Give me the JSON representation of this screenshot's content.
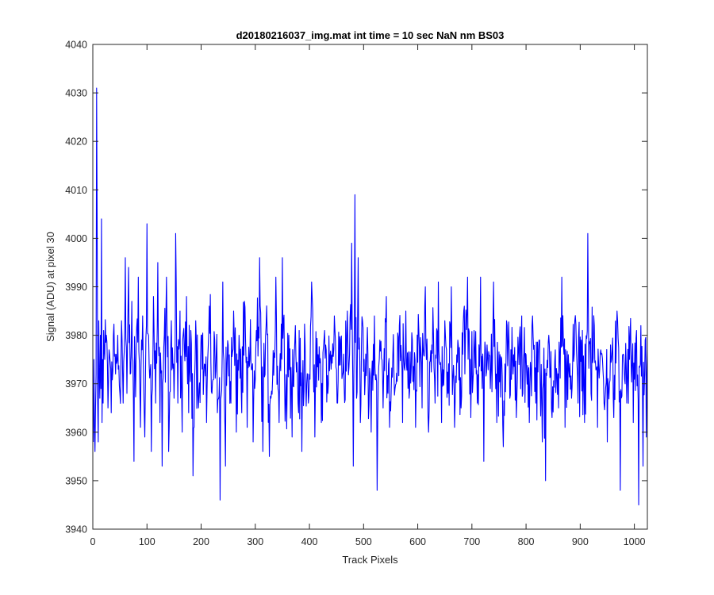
{
  "chart_data": {
    "type": "line",
    "title": "d20180216037_img.mat int time = 10 sec  NaN nm BS03",
    "xlabel": "Track Pixels",
    "ylabel": "Signal (ADU) at pixel 30",
    "xlim": [
      0,
      1024
    ],
    "ylim": [
      3940,
      4040
    ],
    "xticks": [
      0,
      100,
      200,
      300,
      400,
      500,
      600,
      700,
      800,
      900,
      1000
    ],
    "yticks": [
      3940,
      3950,
      3960,
      3970,
      3980,
      3990,
      4000,
      4010,
      4020,
      4030,
      4040
    ],
    "grid": false,
    "legend": "none",
    "series": [
      {
        "color": "#0000ff",
        "mean": 3975,
        "points": [
          [
            1,
            3958
          ],
          [
            2,
            3975
          ],
          [
            3,
            3961
          ],
          [
            4,
            3956
          ],
          [
            5,
            3965
          ],
          [
            6,
            3972
          ],
          [
            7,
            4031
          ],
          [
            8,
            4003
          ],
          [
            9,
            3966
          ],
          [
            10,
            3958
          ],
          [
            11,
            3983
          ],
          [
            12,
            3972
          ],
          [
            13,
            3967
          ],
          [
            14,
            3980
          ],
          [
            15,
            3969
          ],
          [
            16,
            4004
          ],
          [
            17,
            3962
          ],
          [
            18,
            3975
          ],
          [
            19,
            3966
          ],
          [
            20,
            3981
          ],
          [
            22,
            3975
          ],
          [
            25,
            3980
          ],
          [
            28,
            3965
          ],
          [
            31,
            3976
          ],
          [
            34,
            3964
          ],
          [
            38,
            3980
          ],
          [
            42,
            3972
          ],
          [
            46,
            3980
          ],
          [
            50,
            3968
          ],
          [
            53,
            3983
          ],
          [
            56,
            3966
          ],
          [
            60,
            3996
          ],
          [
            63,
            3968
          ],
          [
            66,
            3994
          ],
          [
            69,
            3972
          ],
          [
            72,
            3987
          ],
          [
            76,
            3954
          ],
          [
            80,
            3977
          ],
          [
            84,
            3992
          ],
          [
            88,
            3961
          ],
          [
            92,
            3984
          ],
          [
            96,
            3959
          ],
          [
            100,
            4003
          ],
          [
            104,
            3974
          ],
          [
            108,
            3956
          ],
          [
            112,
            3988
          ],
          [
            116,
            3966
          ],
          [
            120,
            3995
          ],
          [
            124,
            3962
          ],
          [
            128,
            3953
          ],
          [
            132,
            3980
          ],
          [
            136,
            3992
          ],
          [
            140,
            3956
          ],
          [
            145,
            3983
          ],
          [
            150,
            3967
          ],
          [
            153,
            4001
          ],
          [
            157,
            3966
          ],
          [
            161,
            3985
          ],
          [
            165,
            3960
          ],
          [
            169,
            3977
          ],
          [
            173,
            3988
          ],
          [
            177,
            3964
          ],
          [
            181,
            3981
          ],
          [
            185,
            3951
          ],
          [
            190,
            3983
          ],
          [
            195,
            3965
          ],
          [
            200,
            3980
          ],
          [
            205,
            3972
          ],
          [
            210,
            3962
          ],
          [
            215,
            3986
          ],
          [
            220,
            3968
          ],
          [
            225,
            3979
          ],
          [
            230,
            3964
          ],
          [
            235,
            3946
          ],
          [
            240,
            3991
          ],
          [
            245,
            3953
          ],
          [
            250,
            3978
          ],
          [
            255,
            3966
          ],
          [
            260,
            3985
          ],
          [
            265,
            3960
          ],
          [
            270,
            3980
          ],
          [
            275,
            3964
          ],
          [
            280,
            3987
          ],
          [
            285,
            3961
          ],
          [
            290,
            3975
          ],
          [
            296,
            3958
          ],
          [
            302,
            3981
          ],
          [
            308,
            3996
          ],
          [
            314,
            3956
          ],
          [
            320,
            3982
          ],
          [
            326,
            3955
          ],
          [
            332,
            3971
          ],
          [
            338,
            3992
          ],
          [
            344,
            3962
          ],
          [
            350,
            3996
          ],
          [
            356,
            3966
          ],
          [
            362,
            3980
          ],
          [
            368,
            3959
          ],
          [
            374,
            3982
          ],
          [
            380,
            3964
          ],
          [
            386,
            3956
          ],
          [
            392,
            3978
          ],
          [
            398,
            3966
          ],
          [
            404,
            3991
          ],
          [
            410,
            3959
          ],
          [
            416,
            3976
          ],
          [
            422,
            3962
          ],
          [
            428,
            3981
          ],
          [
            434,
            3968
          ],
          [
            440,
            3973
          ],
          [
            446,
            3984
          ],
          [
            452,
            3966
          ],
          [
            458,
            3979
          ],
          [
            464,
            3970
          ],
          [
            470,
            3985
          ],
          [
            474,
            3976
          ],
          [
            478,
            3999
          ],
          [
            481,
            3953
          ],
          [
            484,
            4009
          ],
          [
            487,
            3967
          ],
          [
            490,
            3996
          ],
          [
            494,
            3962
          ],
          [
            498,
            3983
          ],
          [
            503,
            3971
          ],
          [
            508,
            3976
          ],
          [
            514,
            3960
          ],
          [
            520,
            3984
          ],
          [
            525,
            3948
          ],
          [
            530,
            3979
          ],
          [
            536,
            3965
          ],
          [
            542,
            3988
          ],
          [
            548,
            3961
          ],
          [
            554,
            3976
          ],
          [
            560,
            3970
          ],
          [
            566,
            3982
          ],
          [
            572,
            3962
          ],
          [
            578,
            3985
          ],
          [
            584,
            3967
          ],
          [
            590,
            3979
          ],
          [
            596,
            3961
          ],
          [
            602,
            3981
          ],
          [
            608,
            3965
          ],
          [
            614,
            3990
          ],
          [
            620,
            3960
          ],
          [
            626,
            3978
          ],
          [
            632,
            3966
          ],
          [
            638,
            3991
          ],
          [
            644,
            3962
          ],
          [
            650,
            3983
          ],
          [
            656,
            3968
          ],
          [
            662,
            3990
          ],
          [
            668,
            3961
          ],
          [
            674,
            3979
          ],
          [
            680,
            3965
          ],
          [
            686,
            3986
          ],
          [
            692,
            3992
          ],
          [
            698,
            3963
          ],
          [
            704,
            3981
          ],
          [
            710,
            3966
          ],
          [
            716,
            3992
          ],
          [
            722,
            3954
          ],
          [
            728,
            3978
          ],
          [
            734,
            3969
          ],
          [
            740,
            3991
          ],
          [
            746,
            3962
          ],
          [
            752,
            3976
          ],
          [
            758,
            3957
          ],
          [
            764,
            3983
          ],
          [
            770,
            3967
          ],
          [
            776,
            3972
          ],
          [
            782,
            3963
          ],
          [
            788,
            3980
          ],
          [
            794,
            3968
          ],
          [
            800,
            3976
          ],
          [
            806,
            3962
          ],
          [
            812,
            3984
          ],
          [
            818,
            3966
          ],
          [
            824,
            3979
          ],
          [
            830,
            3958
          ],
          [
            836,
            3950
          ],
          [
            842,
            3980
          ],
          [
            848,
            3963
          ],
          [
            854,
            3977
          ],
          [
            860,
            3965
          ],
          [
            866,
            3992
          ],
          [
            872,
            3961
          ],
          [
            878,
            3976
          ],
          [
            884,
            3967
          ],
          [
            890,
            3983
          ],
          [
            896,
            3966
          ],
          [
            902,
            3979
          ],
          [
            908,
            3962
          ],
          [
            914,
            4001
          ],
          [
            920,
            3968
          ],
          [
            926,
            3982
          ],
          [
            932,
            3961
          ],
          [
            938,
            3977
          ],
          [
            944,
            3966
          ],
          [
            950,
            3958
          ],
          [
            956,
            3978
          ],
          [
            962,
            3963
          ],
          [
            968,
            3985
          ],
          [
            974,
            3948
          ],
          [
            980,
            3976
          ],
          [
            986,
            3966
          ],
          [
            992,
            3980
          ],
          [
            998,
            3962
          ],
          [
            1004,
            3981
          ],
          [
            1008,
            3945
          ],
          [
            1012,
            3982
          ],
          [
            1016,
            3953
          ],
          [
            1019,
            3972
          ],
          [
            1022,
            3959
          ],
          [
            1024,
            3977
          ]
        ]
      }
    ]
  }
}
